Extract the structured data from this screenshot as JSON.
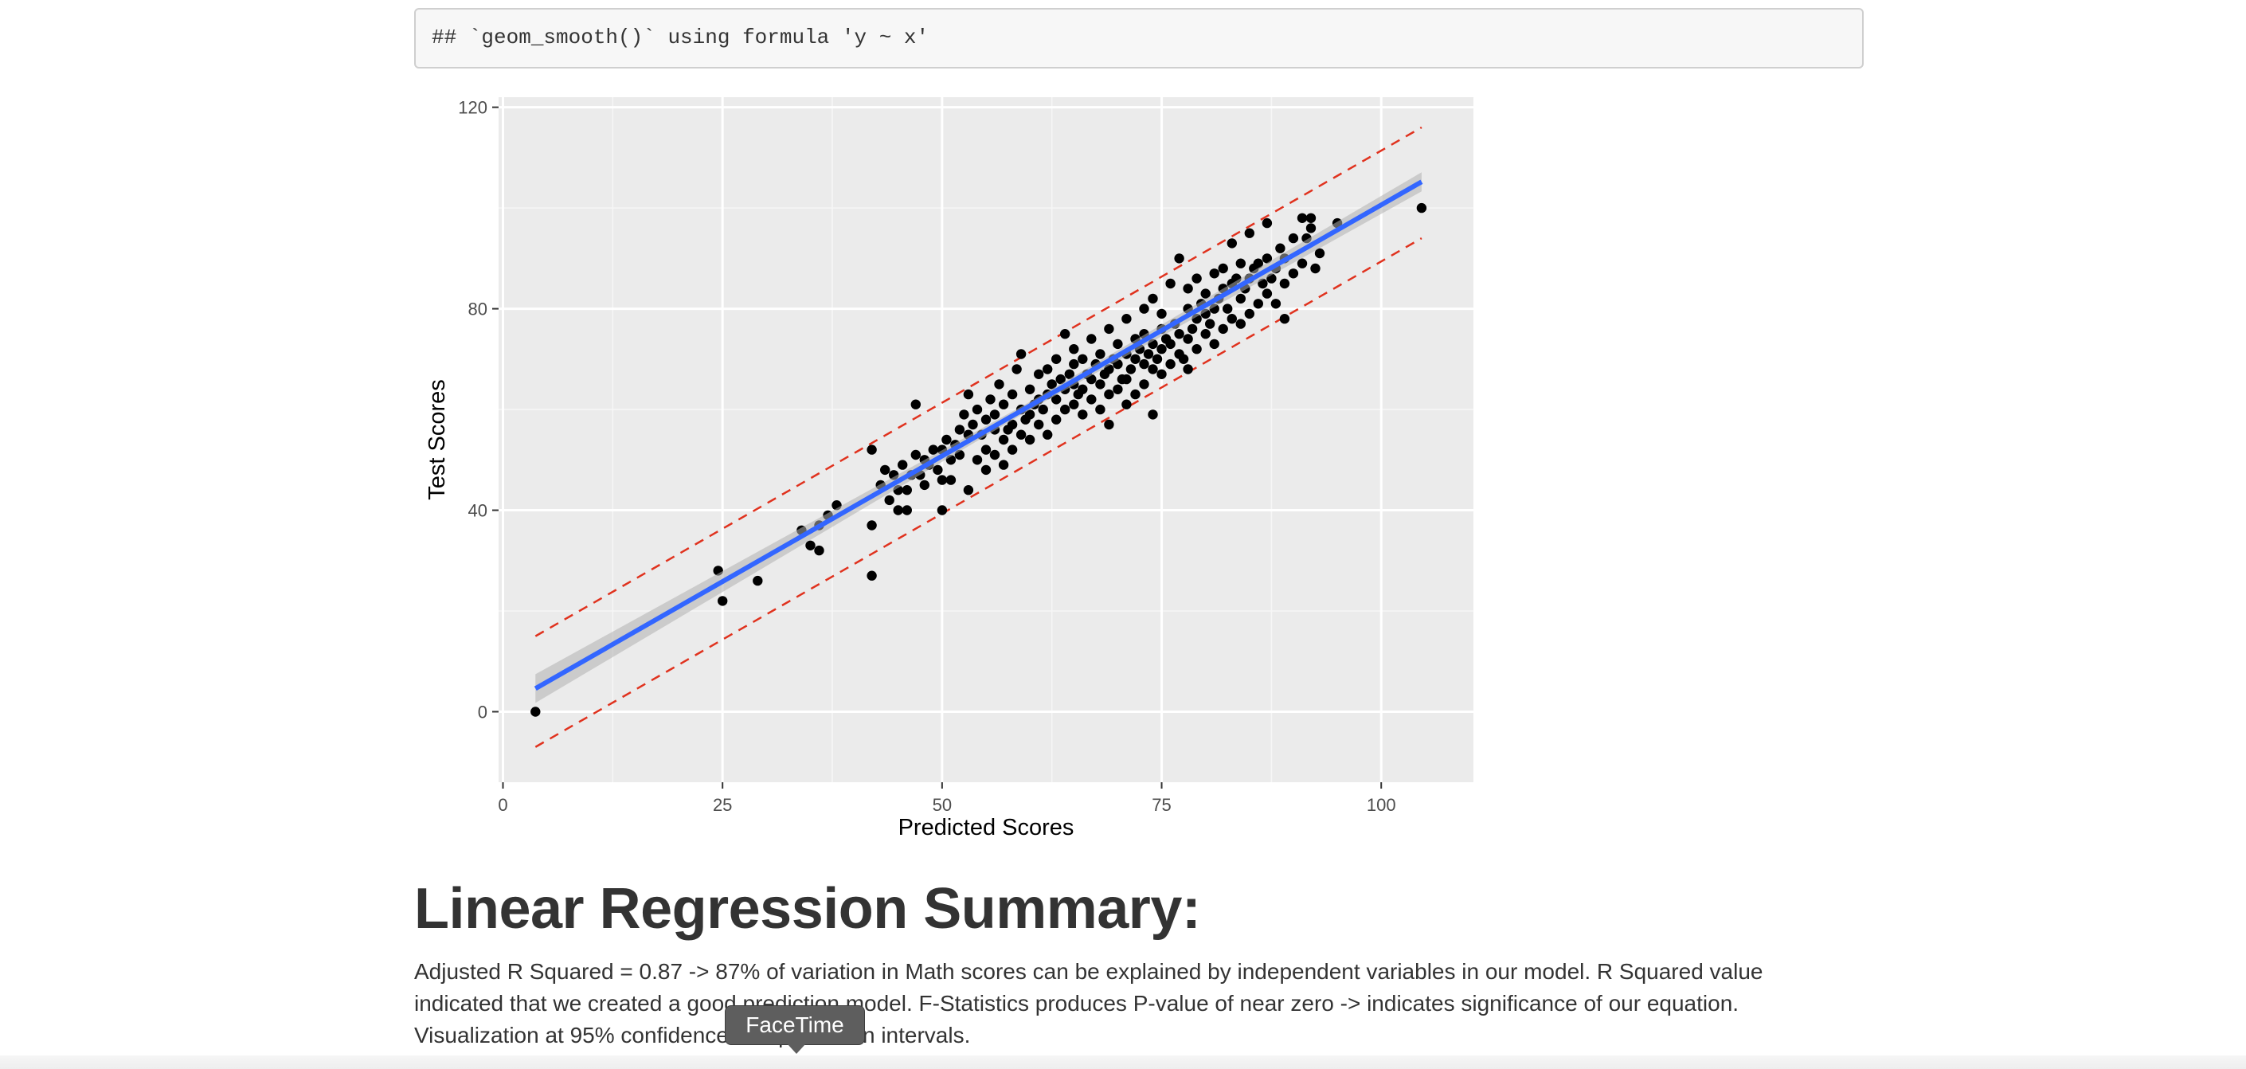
{
  "code_output": "## `geom_smooth()` using formula 'y ~ x'",
  "chart_data": {
    "type": "scatter",
    "xlabel": "Predicted Scores",
    "ylabel": "Test Scores",
    "xlim": [
      -0.5,
      110.5
    ],
    "ylim": [
      -14,
      122
    ],
    "x_ticks": [
      0,
      25,
      50,
      75,
      100
    ],
    "y_ticks": [
      0,
      40,
      80,
      120
    ],
    "grid": true,
    "background": "#ebebeb",
    "point_color": "#000000",
    "fit_line": {
      "x": [
        3.7,
        104.6
      ],
      "y": [
        4.6,
        105.2
      ],
      "color": "#3366ff",
      "ci_color": "#b0b0b0"
    },
    "prediction_bands": {
      "color": "#e0321e",
      "upper": {
        "x": [
          3.7,
          104.6
        ],
        "y": [
          15.0,
          116.0
        ]
      },
      "lower": {
        "x": [
          3.7,
          104.6
        ],
        "y": [
          -7.0,
          94.0
        ]
      }
    },
    "points": [
      [
        3.7,
        0
      ],
      [
        24.5,
        28
      ],
      [
        25,
        22
      ],
      [
        29,
        26
      ],
      [
        34,
        36
      ],
      [
        35,
        33
      ],
      [
        36,
        32
      ],
      [
        36,
        37
      ],
      [
        37,
        39
      ],
      [
        38,
        41
      ],
      [
        42,
        37
      ],
      [
        42,
        27
      ],
      [
        42,
        52
      ],
      [
        43,
        45
      ],
      [
        43.5,
        48
      ],
      [
        44,
        42
      ],
      [
        44.5,
        47
      ],
      [
        45,
        40
      ],
      [
        45,
        44
      ],
      [
        45.5,
        49
      ],
      [
        46,
        40
      ],
      [
        46,
        44
      ],
      [
        46.5,
        47
      ],
      [
        47,
        51
      ],
      [
        47,
        61
      ],
      [
        47.5,
        47
      ],
      [
        48,
        45
      ],
      [
        48,
        50
      ],
      [
        48.5,
        49
      ],
      [
        49,
        52
      ],
      [
        49.5,
        48
      ],
      [
        50,
        46
      ],
      [
        50,
        52
      ],
      [
        50,
        40
      ],
      [
        50.5,
        54
      ],
      [
        51,
        50
      ],
      [
        51,
        46
      ],
      [
        51.5,
        53
      ],
      [
        52,
        51
      ],
      [
        52,
        56
      ],
      [
        52.5,
        59
      ],
      [
        53,
        44
      ],
      [
        53,
        55
      ],
      [
        53,
        63
      ],
      [
        53.5,
        57
      ],
      [
        54,
        50
      ],
      [
        54,
        60
      ],
      [
        54.5,
        55
      ],
      [
        55,
        48
      ],
      [
        55,
        52
      ],
      [
        55,
        58
      ],
      [
        55.5,
        62
      ],
      [
        56,
        51
      ],
      [
        56,
        56
      ],
      [
        56,
        59
      ],
      [
        56.5,
        65
      ],
      [
        57,
        49
      ],
      [
        57,
        54
      ],
      [
        57,
        61
      ],
      [
        57.5,
        56
      ],
      [
        58,
        52
      ],
      [
        58,
        57
      ],
      [
        58,
        63
      ],
      [
        58.5,
        68
      ],
      [
        59,
        55
      ],
      [
        59,
        60
      ],
      [
        59,
        71
      ],
      [
        59.5,
        58
      ],
      [
        60,
        54
      ],
      [
        60,
        59
      ],
      [
        60,
        64
      ],
      [
        60.5,
        61
      ],
      [
        61,
        57
      ],
      [
        61,
        62
      ],
      [
        61,
        67
      ],
      [
        61.5,
        60
      ],
      [
        62,
        55
      ],
      [
        62,
        63
      ],
      [
        62,
        68
      ],
      [
        62.5,
        65
      ],
      [
        63,
        58
      ],
      [
        63,
        62
      ],
      [
        63,
        70
      ],
      [
        63.5,
        66
      ],
      [
        64,
        60
      ],
      [
        64,
        64
      ],
      [
        64,
        75
      ],
      [
        64.5,
        67
      ],
      [
        65,
        61
      ],
      [
        65,
        65
      ],
      [
        65,
        69
      ],
      [
        65,
        72
      ],
      [
        65.5,
        63
      ],
      [
        66,
        59
      ],
      [
        66,
        64
      ],
      [
        66,
        70
      ],
      [
        66.5,
        67
      ],
      [
        67,
        62
      ],
      [
        67,
        66
      ],
      [
        67,
        74
      ],
      [
        67.5,
        69
      ],
      [
        68,
        60
      ],
      [
        68,
        65
      ],
      [
        68,
        71
      ],
      [
        68.5,
        67
      ],
      [
        69,
        57
      ],
      [
        69,
        63
      ],
      [
        69,
        68
      ],
      [
        69,
        76
      ],
      [
        69.5,
        70
      ],
      [
        70,
        64
      ],
      [
        70,
        69
      ],
      [
        70,
        73
      ],
      [
        70.5,
        66
      ],
      [
        71,
        61
      ],
      [
        71,
        66
      ],
      [
        71,
        71
      ],
      [
        71,
        78
      ],
      [
        71.5,
        68
      ],
      [
        72,
        63
      ],
      [
        72,
        70
      ],
      [
        72,
        74
      ],
      [
        72.5,
        72
      ],
      [
        73,
        65
      ],
      [
        73,
        69
      ],
      [
        73,
        75
      ],
      [
        73,
        80
      ],
      [
        73.5,
        71
      ],
      [
        74,
        59
      ],
      [
        74,
        68
      ],
      [
        74,
        73
      ],
      [
        74,
        82
      ],
      [
        74.5,
        70
      ],
      [
        75,
        67
      ],
      [
        75,
        72
      ],
      [
        75,
        76
      ],
      [
        75,
        79
      ],
      [
        75.5,
        74
      ],
      [
        76,
        69
      ],
      [
        76,
        73
      ],
      [
        76,
        85
      ],
      [
        76.5,
        77
      ],
      [
        77,
        71
      ],
      [
        77,
        75
      ],
      [
        77,
        90
      ],
      [
        77.5,
        70
      ],
      [
        78,
        68
      ],
      [
        78,
        74
      ],
      [
        78,
        80
      ],
      [
        78,
        84
      ],
      [
        78.5,
        76
      ],
      [
        79,
        72
      ],
      [
        79,
        78
      ],
      [
        79,
        86
      ],
      [
        79.5,
        81
      ],
      [
        80,
        75
      ],
      [
        80,
        79
      ],
      [
        80,
        83
      ],
      [
        80.5,
        77
      ],
      [
        81,
        73
      ],
      [
        81,
        80
      ],
      [
        81,
        87
      ],
      [
        81.5,
        82
      ],
      [
        82,
        76
      ],
      [
        82,
        84
      ],
      [
        82,
        88
      ],
      [
        82.5,
        80
      ],
      [
        83,
        78
      ],
      [
        83,
        85
      ],
      [
        83,
        93
      ],
      [
        83.5,
        86
      ],
      [
        84,
        77
      ],
      [
        84,
        82
      ],
      [
        84,
        89
      ],
      [
        84.5,
        84
      ],
      [
        85,
        79
      ],
      [
        85,
        86
      ],
      [
        85,
        95
      ],
      [
        85.5,
        88
      ],
      [
        86,
        81
      ],
      [
        86,
        89
      ],
      [
        86.5,
        85
      ],
      [
        87,
        83
      ],
      [
        87,
        90
      ],
      [
        87,
        97
      ],
      [
        87.5,
        86
      ],
      [
        88,
        81
      ],
      [
        88,
        88
      ],
      [
        88.5,
        92
      ],
      [
        89,
        78
      ],
      [
        89,
        85
      ],
      [
        89,
        90
      ],
      [
        90,
        87
      ],
      [
        90,
        94
      ],
      [
        91,
        89
      ],
      [
        91,
        98
      ],
      [
        91.5,
        94
      ],
      [
        92,
        98
      ],
      [
        92,
        96
      ],
      [
        92.5,
        88
      ],
      [
        93,
        91
      ],
      [
        95,
        97
      ],
      [
        104.6,
        100
      ]
    ]
  },
  "summary": {
    "heading": "Linear Regression Summary:",
    "text": "Adjusted R Squared = 0.87 -> 87% of variation in Math scores can be explained by independent variables in our model. R Squared value indicated that we created a good prediction model. F-Statistics produces P-value of near zero -> indicates significance of our equation. Visualization at 95% confidence and prediction intervals."
  },
  "tooltip": {
    "label": "FaceTime"
  }
}
